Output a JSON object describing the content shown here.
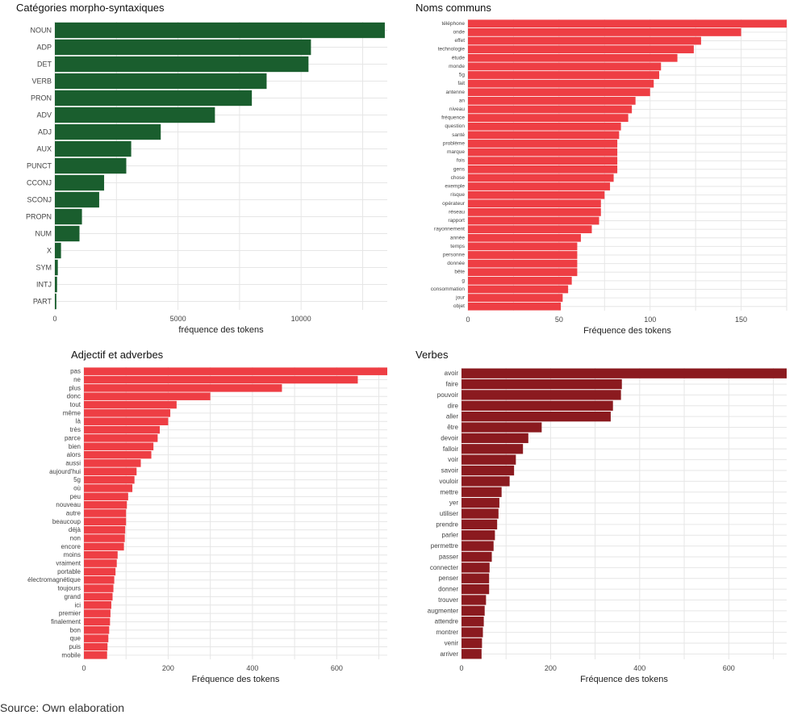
{
  "chart_data": [
    {
      "type": "bar",
      "orientation": "horizontal",
      "title": "Catégories morpho-syntaxiques",
      "xlabel": "fréquence des tokens",
      "ylabel": "",
      "color": "#1a5e2e",
      "xlim": [
        0,
        13500
      ],
      "xticks": [
        0,
        5000,
        10000
      ],
      "xtick_labels": [
        "0",
        "5000",
        "10000"
      ],
      "categories": [
        "NOUN",
        "ADP",
        "DET",
        "VERB",
        "PRON",
        "ADV",
        "ADJ",
        "AUX",
        "PUNCT",
        "CCONJ",
        "SCONJ",
        "PROPN",
        "NUM",
        "X",
        "SYM",
        "INTJ",
        "PART"
      ],
      "values": [
        13400,
        10400,
        10300,
        8600,
        8000,
        6500,
        4300,
        3100,
        2900,
        2000,
        1800,
        1100,
        1000,
        250,
        120,
        90,
        60
      ]
    },
    {
      "type": "bar",
      "orientation": "horizontal",
      "title": "Noms communs",
      "xlabel": "Fréquence des tokens",
      "ylabel": "",
      "color": "#ee3e44",
      "xlim": [
        0,
        175
      ],
      "xticks": [
        0,
        50,
        100,
        150
      ],
      "xtick_labels": [
        "0",
        "50",
        "100",
        "150"
      ],
      "categories": [
        "téléphone",
        "onde",
        "effet",
        "technologie",
        "étude",
        "monde",
        "5g",
        "fait",
        "antenne",
        "an",
        "niveau",
        "fréquence",
        "question",
        "santé",
        "problème",
        "marque",
        "fois",
        "gens",
        "chose",
        "exemple",
        "risque",
        "opérateur",
        "réseau",
        "rapport",
        "rayonnement",
        "année",
        "temps",
        "personne",
        "donnée",
        "bête",
        "g",
        "consommation",
        "jour",
        "objet"
      ],
      "values": [
        175,
        150,
        128,
        124,
        115,
        106,
        105,
        102,
        100,
        92,
        90,
        88,
        84,
        83,
        82,
        82,
        82,
        82,
        80,
        78,
        75,
        73,
        73,
        72,
        68,
        62,
        60,
        60,
        60,
        60,
        57,
        55,
        52,
        51
      ]
    },
    {
      "type": "bar",
      "orientation": "horizontal",
      "title": "Adjectif et adverbes",
      "xlabel": "Fréquence des tokens",
      "ylabel": "",
      "color": "#ee3e44",
      "xlim": [
        0,
        720
      ],
      "xticks": [
        0,
        200,
        400,
        600
      ],
      "xtick_labels": [
        "0",
        "200",
        "400",
        "600"
      ],
      "categories": [
        "pas",
        "ne",
        "plus",
        "donc",
        "tout",
        "même",
        "là",
        "très",
        "parce",
        "bien",
        "alors",
        "aussi",
        "aujourd'hui",
        "5g",
        "où",
        "peu",
        "nouveau",
        "autre",
        "beaucoup",
        "déjà",
        "non",
        "encore",
        "moins",
        "vraiment",
        "portable",
        "électromagnétique",
        "toujours",
        "grand",
        "ici",
        "premier",
        "finalement",
        "bon",
        "que",
        "puis",
        "mobile"
      ],
      "values": [
        720,
        650,
        470,
        300,
        220,
        205,
        200,
        180,
        175,
        165,
        160,
        135,
        125,
        120,
        115,
        105,
        102,
        100,
        100,
        98,
        97,
        95,
        80,
        78,
        75,
        72,
        70,
        68,
        65,
        63,
        62,
        60,
        58,
        56,
        55
      ]
    },
    {
      "type": "bar",
      "orientation": "horizontal",
      "title": "Verbes",
      "xlabel": "Fréquence des tokens",
      "ylabel": "",
      "color": "#8b1a1f",
      "xlim": [
        0,
        730
      ],
      "xticks": [
        0,
        200,
        400,
        600
      ],
      "xtick_labels": [
        "0",
        "200",
        "400",
        "600"
      ],
      "categories": [
        "avoir",
        "faire",
        "pouvoir",
        "dire",
        "aller",
        "être",
        "devoir",
        "falloir",
        "voir",
        "savoir",
        "vouloir",
        "mettre",
        "yer",
        "utiliser",
        "prendre",
        "parler",
        "permettre",
        "passer",
        "connecter",
        "penser",
        "donner",
        "trouver",
        "augmenter",
        "attendre",
        "montrer",
        "venir",
        "arriver"
      ],
      "values": [
        730,
        360,
        358,
        340,
        335,
        180,
        150,
        138,
        122,
        118,
        108,
        90,
        85,
        83,
        80,
        75,
        72,
        68,
        63,
        62,
        62,
        55,
        52,
        50,
        48,
        46,
        45
      ]
    }
  ],
  "source": "Source: Own elaboration"
}
